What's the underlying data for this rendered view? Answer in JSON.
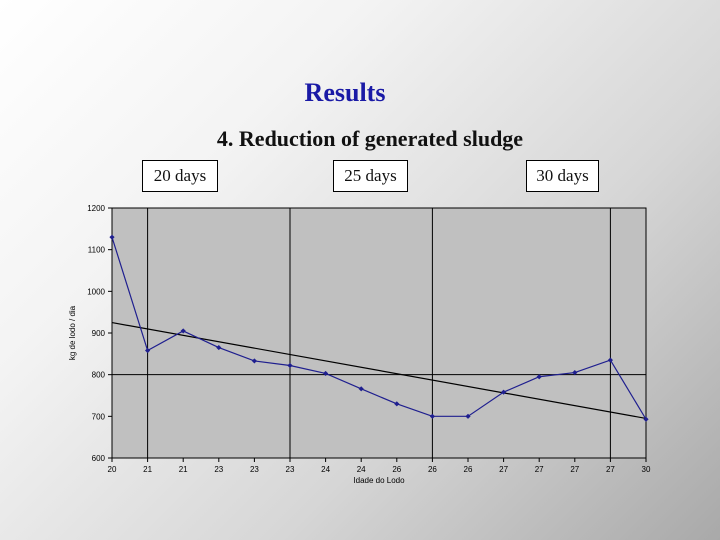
{
  "slide": {
    "title": "Results",
    "subtitle": "4. Reduction of generated sludge",
    "period_labels": [
      "20 days",
      "25 days",
      "30 days"
    ]
  },
  "chart_data": {
    "type": "line",
    "title": "",
    "xlabel": "Idade do Lodo",
    "ylabel": "kg de lodo / dia",
    "ylim": [
      600,
      1200
    ],
    "yticks": [
      600,
      700,
      800,
      900,
      1000,
      1100,
      1200
    ],
    "grid": false,
    "plot_background": "#c0c0c0",
    "categories": [
      "20",
      "21",
      "21",
      "23",
      "23",
      "23",
      "24",
      "24",
      "26",
      "26",
      "26",
      "27",
      "27",
      "27",
      "27",
      "30"
    ],
    "series": [
      {
        "color": "#1f1f8f",
        "marker": "diamond",
        "values": [
          1130,
          858,
          905,
          865,
          833,
          822,
          803,
          766,
          730,
          700,
          700,
          758,
          795,
          805,
          835,
          693
        ]
      }
    ],
    "trendline": {
      "type": "linear",
      "color": "#000000",
      "start": 925,
      "end": 695
    },
    "reference_lines": {
      "vertical_at_index": [
        1,
        5,
        9,
        14
      ],
      "horizontal_at_value": [
        800
      ]
    }
  }
}
